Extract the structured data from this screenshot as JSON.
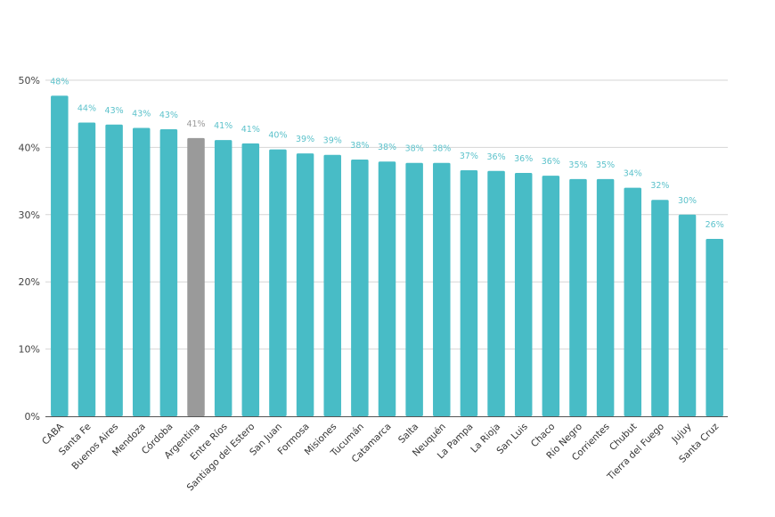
{
  "chart_data": {
    "type": "bar",
    "title": "",
    "xlabel": "",
    "ylabel": "",
    "ylim": [
      0,
      50
    ],
    "yticks": [
      "0%",
      "10%",
      "20%",
      "30%",
      "40%",
      "50%"
    ],
    "ytick_values": [
      0,
      10,
      20,
      30,
      40,
      50
    ],
    "grid": true,
    "legend": "none",
    "categories": [
      "CABA",
      "Santa Fe",
      "Buenos Aires",
      "Mendoza",
      "Córdoba",
      "Argentina",
      "Entre Ríos",
      "Santiago del Estero",
      "San Juan",
      "Formosa",
      "Misiones",
      "Tucumán",
      "Catamarca",
      "Salta",
      "Neuquén",
      "La Pampa",
      "La Rioja",
      "San Luis",
      "Chaco",
      "Río Negro",
      "Corrientes",
      "Chubut",
      "Tierra del Fuego",
      "Jujuy",
      "Santa Cruz"
    ],
    "values": [
      47.7,
      43.7,
      43.4,
      42.9,
      42.7,
      41.4,
      41.1,
      40.6,
      39.7,
      39.1,
      38.9,
      38.2,
      37.9,
      37.7,
      37.7,
      36.6,
      36.5,
      36.2,
      35.8,
      35.3,
      35.3,
      34.0,
      32.2,
      30.0,
      26.4
    ],
    "data_labels": [
      "48%",
      "44%",
      "43%",
      "43%",
      "43%",
      "41%",
      "41%",
      "41%",
      "40%",
      "39%",
      "39%",
      "38%",
      "38%",
      "38%",
      "38%",
      "37%",
      "36%",
      "36%",
      "36%",
      "35%",
      "35%",
      "34%",
      "32%",
      "30%",
      "26%"
    ],
    "highlight_category": "Argentina",
    "colors": {
      "bar": "#48bcc6",
      "highlight_bar": "#9a9a9a",
      "label": "#5cc2cb",
      "highlight_label": "#9a9a9a"
    }
  }
}
